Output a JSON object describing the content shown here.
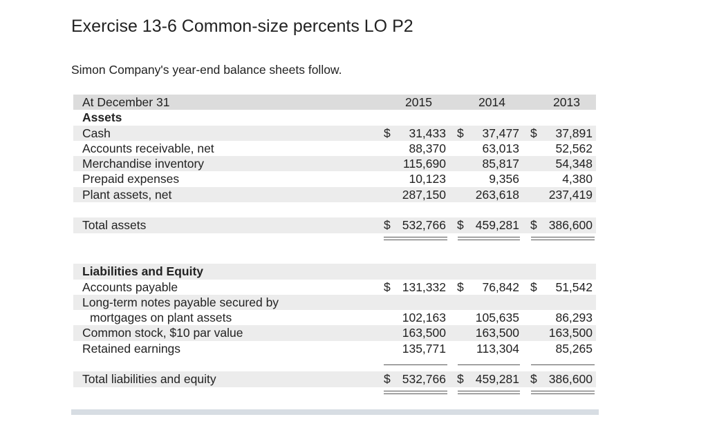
{
  "title": "Exercise 13-6 Common-size percents LO P2",
  "intro": "Simon Company's year-end balance sheets follow.",
  "header": {
    "label": "At December 31",
    "years": [
      "2015",
      "2014",
      "2013"
    ]
  },
  "assets_heading": "Assets",
  "assets": [
    {
      "label": "Cash",
      "cur": [
        "$",
        "$",
        "$"
      ],
      "values": [
        "31,433",
        "37,477",
        "37,891"
      ]
    },
    {
      "label": "Accounts receivable, net",
      "values": [
        "88,370",
        "63,013",
        "52,562"
      ]
    },
    {
      "label": "Merchandise inventory",
      "values": [
        "115,690",
        "85,817",
        "54,348"
      ]
    },
    {
      "label": "Prepaid expenses",
      "values": [
        "10,123",
        "9,356",
        "4,380"
      ]
    },
    {
      "label": "Plant assets, net",
      "values": [
        "287,150",
        "263,618",
        "237,419"
      ]
    }
  ],
  "total_assets": {
    "label": "Total assets",
    "cur": [
      "$",
      "$",
      "$"
    ],
    "values": [
      "532,766",
      "459,281",
      "386,600"
    ]
  },
  "liab_heading": "Liabilities and Equity",
  "liabilities": [
    {
      "label": "Accounts payable",
      "cur": [
        "$",
        "$",
        "$"
      ],
      "values": [
        "131,332",
        "76,842",
        "51,542"
      ]
    },
    {
      "label": "Long-term notes payable secured by"
    },
    {
      "label": "mortgages on plant assets",
      "values": [
        "102,163",
        "105,635",
        "86,293"
      ]
    },
    {
      "label": "Common stock, $10 par value",
      "values": [
        "163,500",
        "163,500",
        "163,500"
      ]
    },
    {
      "label": "Retained earnings",
      "values": [
        "135,771",
        "113,304",
        "85,265"
      ]
    }
  ],
  "total_liab": {
    "label": "Total liabilities and equity",
    "cur": [
      "$",
      "$",
      "$"
    ],
    "values": [
      "532,766",
      "459,281",
      "386,600"
    ]
  }
}
